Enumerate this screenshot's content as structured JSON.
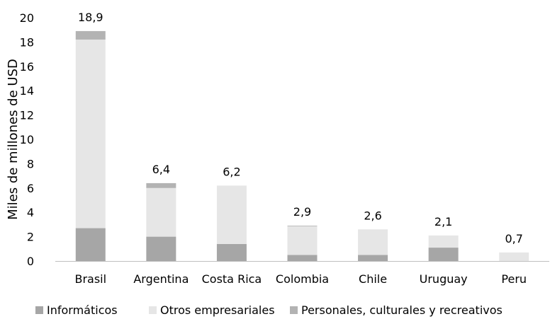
{
  "chart_data": {
    "type": "bar",
    "stacked": true,
    "title": "",
    "xlabel": "",
    "ylabel": "Miles de millones de USD",
    "ylim": [
      0,
      20
    ],
    "yticks": [
      0,
      2,
      4,
      6,
      8,
      10,
      12,
      14,
      16,
      18,
      20
    ],
    "grid": false,
    "legend_position": "bottom",
    "categories": [
      "Brasil",
      "Argentina",
      "Costa Rica",
      "Colombia",
      "Chile",
      "Uruguay",
      "Peru"
    ],
    "series": [
      {
        "name": "Informáticos",
        "color": "#a6a6a6",
        "values": [
          2.7,
          2.0,
          1.4,
          0.5,
          0.5,
          1.1,
          0.0
        ]
      },
      {
        "name": "Otros empresariales",
        "color": "#e6e6e6",
        "values": [
          15.5,
          4.0,
          4.8,
          2.35,
          2.1,
          1.0,
          0.7
        ]
      },
      {
        "name": "Personales, culturales y recreativos",
        "color": "#b3b3b3",
        "values": [
          0.7,
          0.4,
          0.0,
          0.05,
          0.0,
          0.0,
          0.0
        ]
      }
    ],
    "totals": [
      "18,9",
      "6,4",
      "6,2",
      "2,9",
      "2,6",
      "2,1",
      "0,7"
    ]
  }
}
